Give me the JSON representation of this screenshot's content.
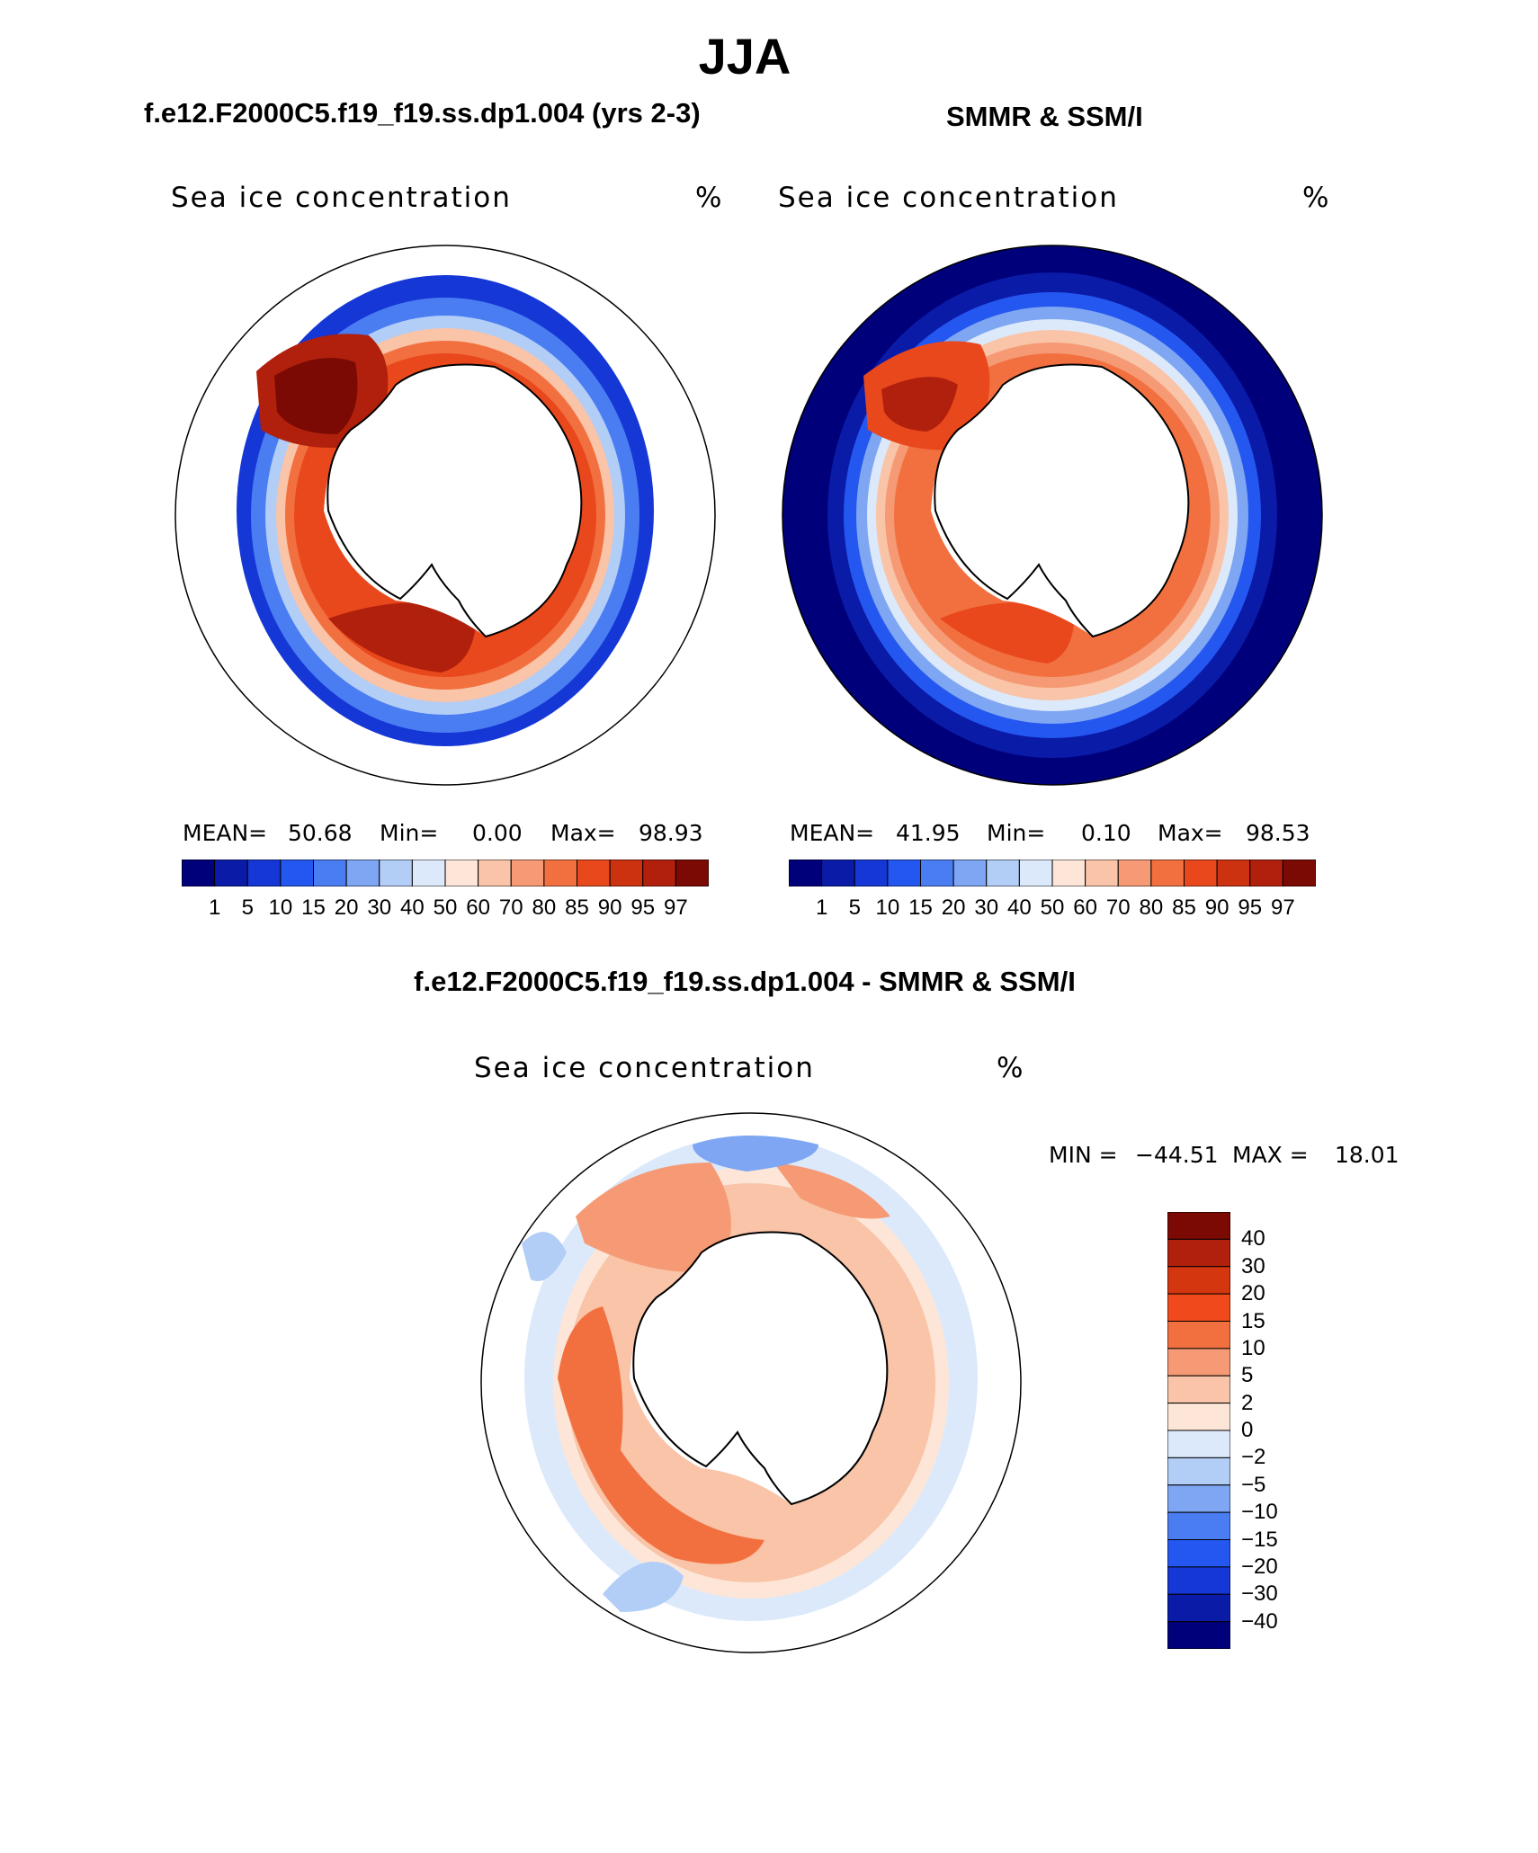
{
  "title": "JJA",
  "panels": [
    {
      "title": "f.e12.F2000C5.f19_f19.ss.dp1.004 (yrs 2-3)",
      "label": "Sea ice concentration",
      "unit": "%",
      "mean_label": "MEAN=",
      "mean_value": "50.68",
      "min_label": "Min=",
      "min_value": "0.00",
      "max_label": "Max=",
      "max_value": "98.93"
    },
    {
      "title": "SMMR & SSM/I",
      "label": "Sea ice concentration",
      "unit": "%",
      "mean_label": "MEAN=",
      "mean_value": "41.95",
      "min_label": "Min=",
      "min_value": "0.10",
      "max_label": "Max=",
      "max_value": "98.53"
    }
  ],
  "conc_colorbar": {
    "levels": [
      "1",
      "5",
      "10",
      "15",
      "20",
      "30",
      "40",
      "50",
      "60",
      "70",
      "80",
      "85",
      "90",
      "95",
      "97"
    ],
    "colors": [
      "#00007a",
      "#0a1ba8",
      "#1537d6",
      "#2457f0",
      "#4a7df2",
      "#7ea6f2",
      "#b2cdf6",
      "#dce9fb",
      "#fde6d8",
      "#f9c4a8",
      "#f59a74",
      "#f2703f",
      "#e9481c",
      "#cc3210",
      "#b0200c",
      "#7a0a03"
    ]
  },
  "difference": {
    "title": "f.e12.F2000C5.f19_f19.ss.dp1.004 - SMMR & SSM/I",
    "label": "Sea ice concentration",
    "unit": "%",
    "min_label": "MIN =",
    "min_value": "−44.51",
    "max_label": "MAX =",
    "max_value": "18.01",
    "levels": [
      "40",
      "30",
      "20",
      "15",
      "10",
      "5",
      "2",
      "0",
      "−2",
      "−5",
      "−10",
      "−15",
      "−20",
      "−30",
      "−40"
    ],
    "colors": [
      "#7a0a03",
      "#b0200c",
      "#d4360f",
      "#f04a1c",
      "#f2703f",
      "#f59a74",
      "#f9c4a8",
      "#fde6d8",
      "#dce9fb",
      "#b2cdf6",
      "#7ea6f2",
      "#4a7df2",
      "#2457f0",
      "#1537d6",
      "#0a1ba8",
      "#00007a"
    ]
  }
}
